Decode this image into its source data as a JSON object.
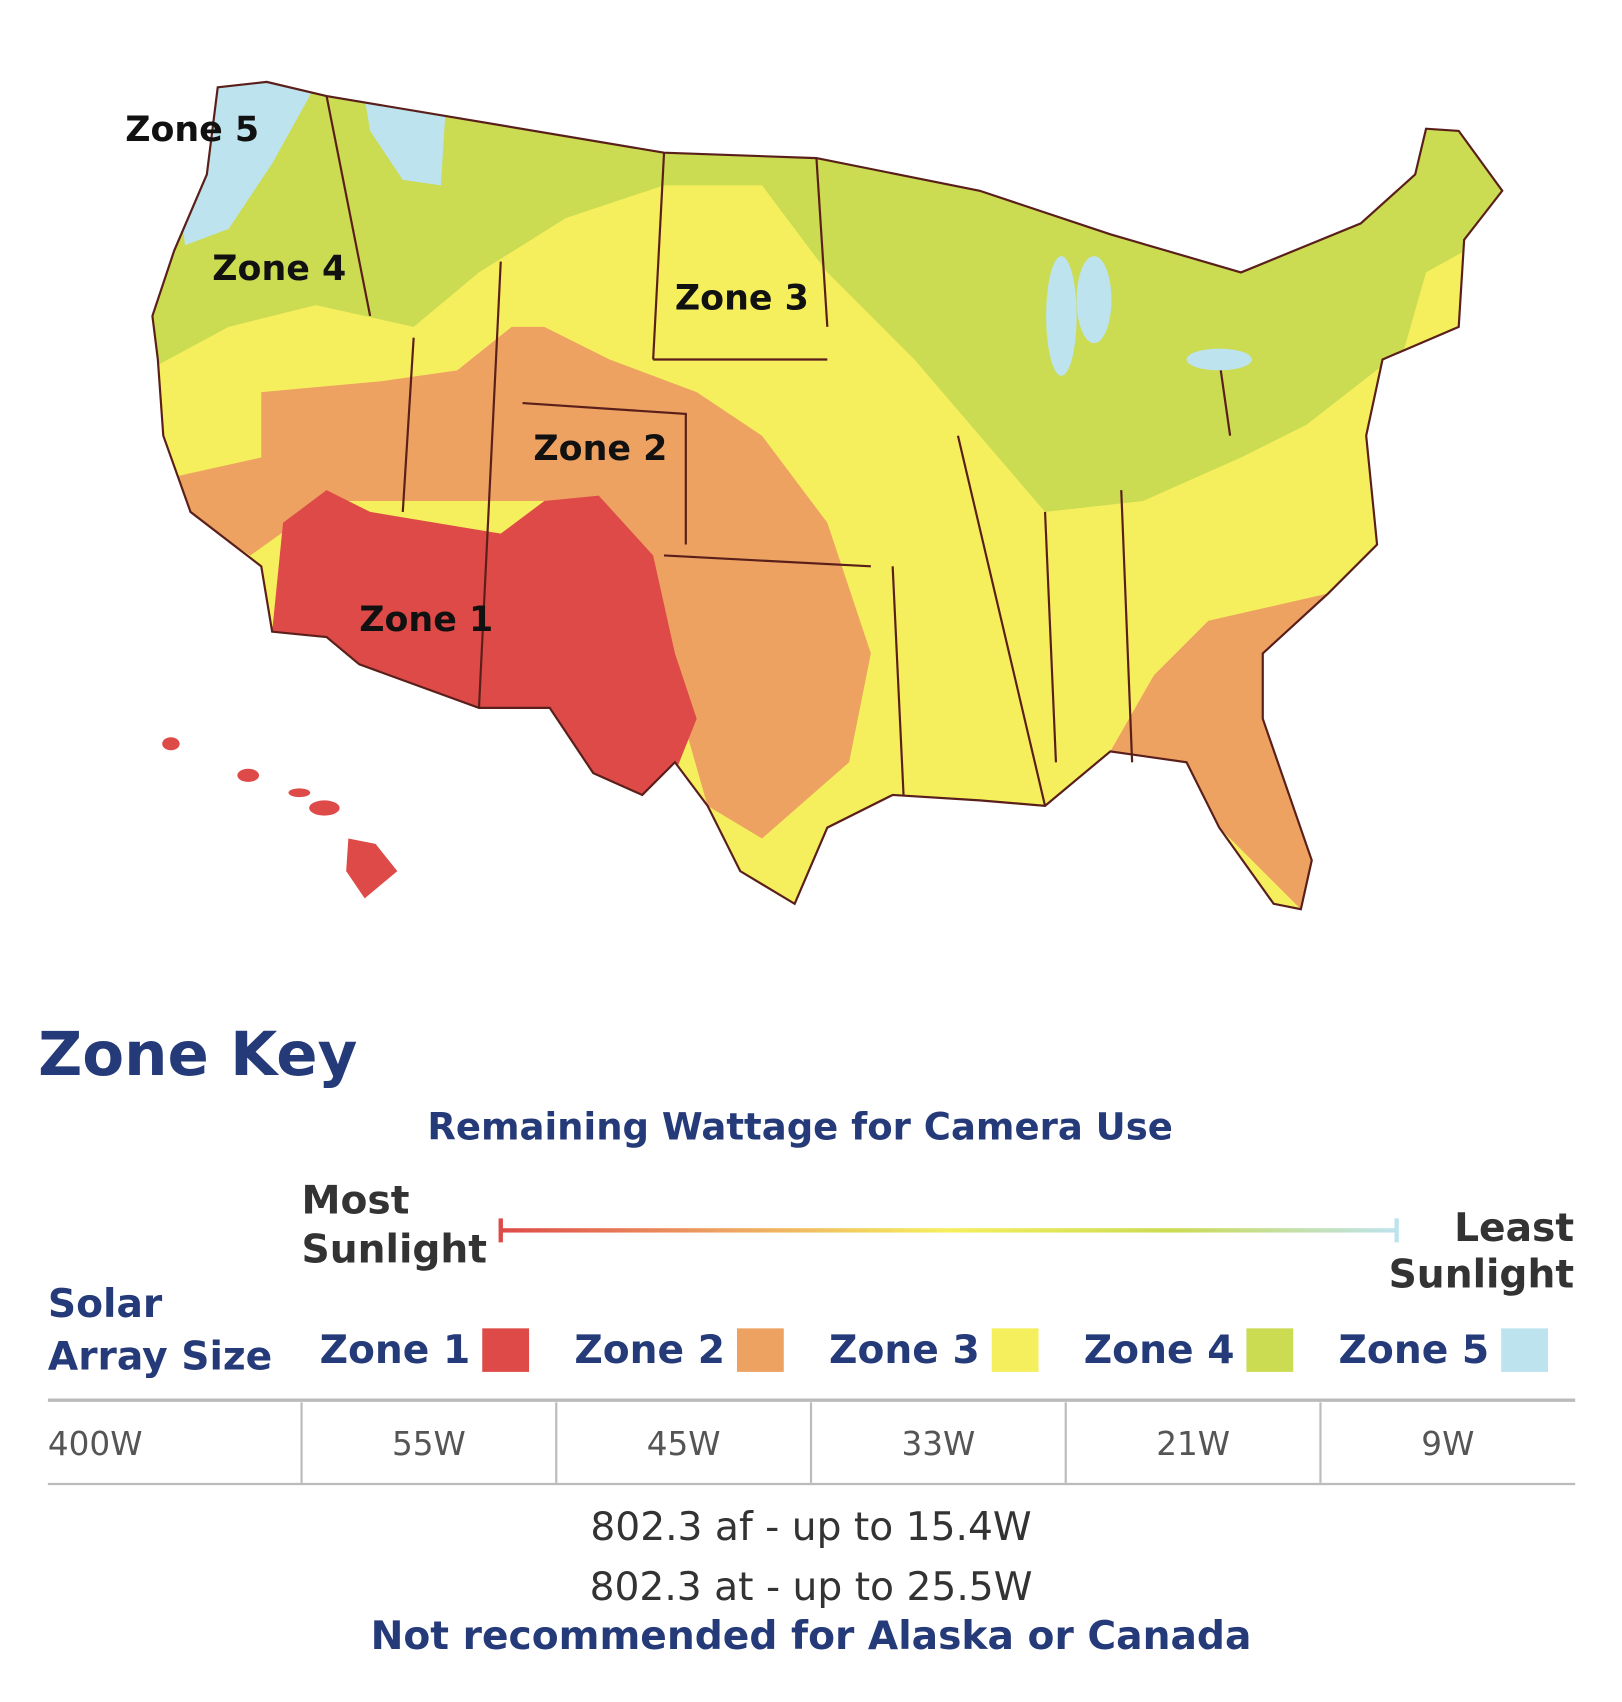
{
  "map": {
    "labels": [
      "Zone 5",
      "Zone 4",
      "Zone 3",
      "Zone 2",
      "Zone 1"
    ]
  },
  "key": {
    "title": "Zone Key",
    "subtitle": "Remaining Wattage for Camera Use",
    "scale_start": [
      "Most",
      "Sunlight"
    ],
    "scale_end": [
      "Least",
      "Sunlight"
    ],
    "zones": [
      {
        "label": "Zone 1",
        "color": "#de4a47"
      },
      {
        "label": "Zone 2",
        "color": "#eda262"
      },
      {
        "label": "Zone 3",
        "color": "#f5ef5d"
      },
      {
        "label": "Zone 4",
        "color": "#cbdb52"
      },
      {
        "label": "Zone 5",
        "color": "#bde3ef"
      }
    ]
  },
  "table": {
    "header": [
      "Solar",
      "Array Size"
    ],
    "rows": [
      [
        "400W",
        "55W",
        "45W",
        "33W",
        "21W",
        "9W"
      ]
    ]
  },
  "notes": [
    "802.3 af - up to 15.4W",
    "802.3 at - up to 25.5W",
    "Not recommended for Alaska or Canada"
  ]
}
